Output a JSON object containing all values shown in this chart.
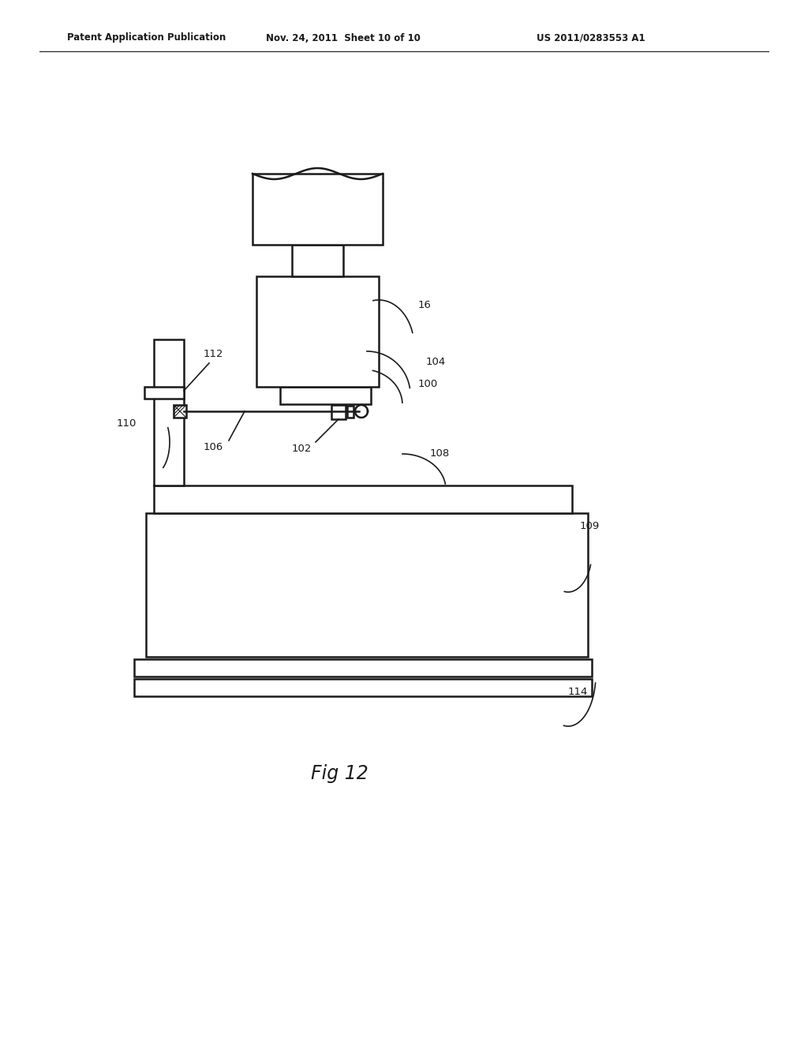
{
  "bg_color": "#ffffff",
  "line_color": "#1a1a1a",
  "header_left": "Patent Application Publication",
  "header_mid": "Nov. 24, 2011  Sheet 10 of 10",
  "header_right": "US 2011/0283553 A1",
  "fig_label": "Fig 12"
}
